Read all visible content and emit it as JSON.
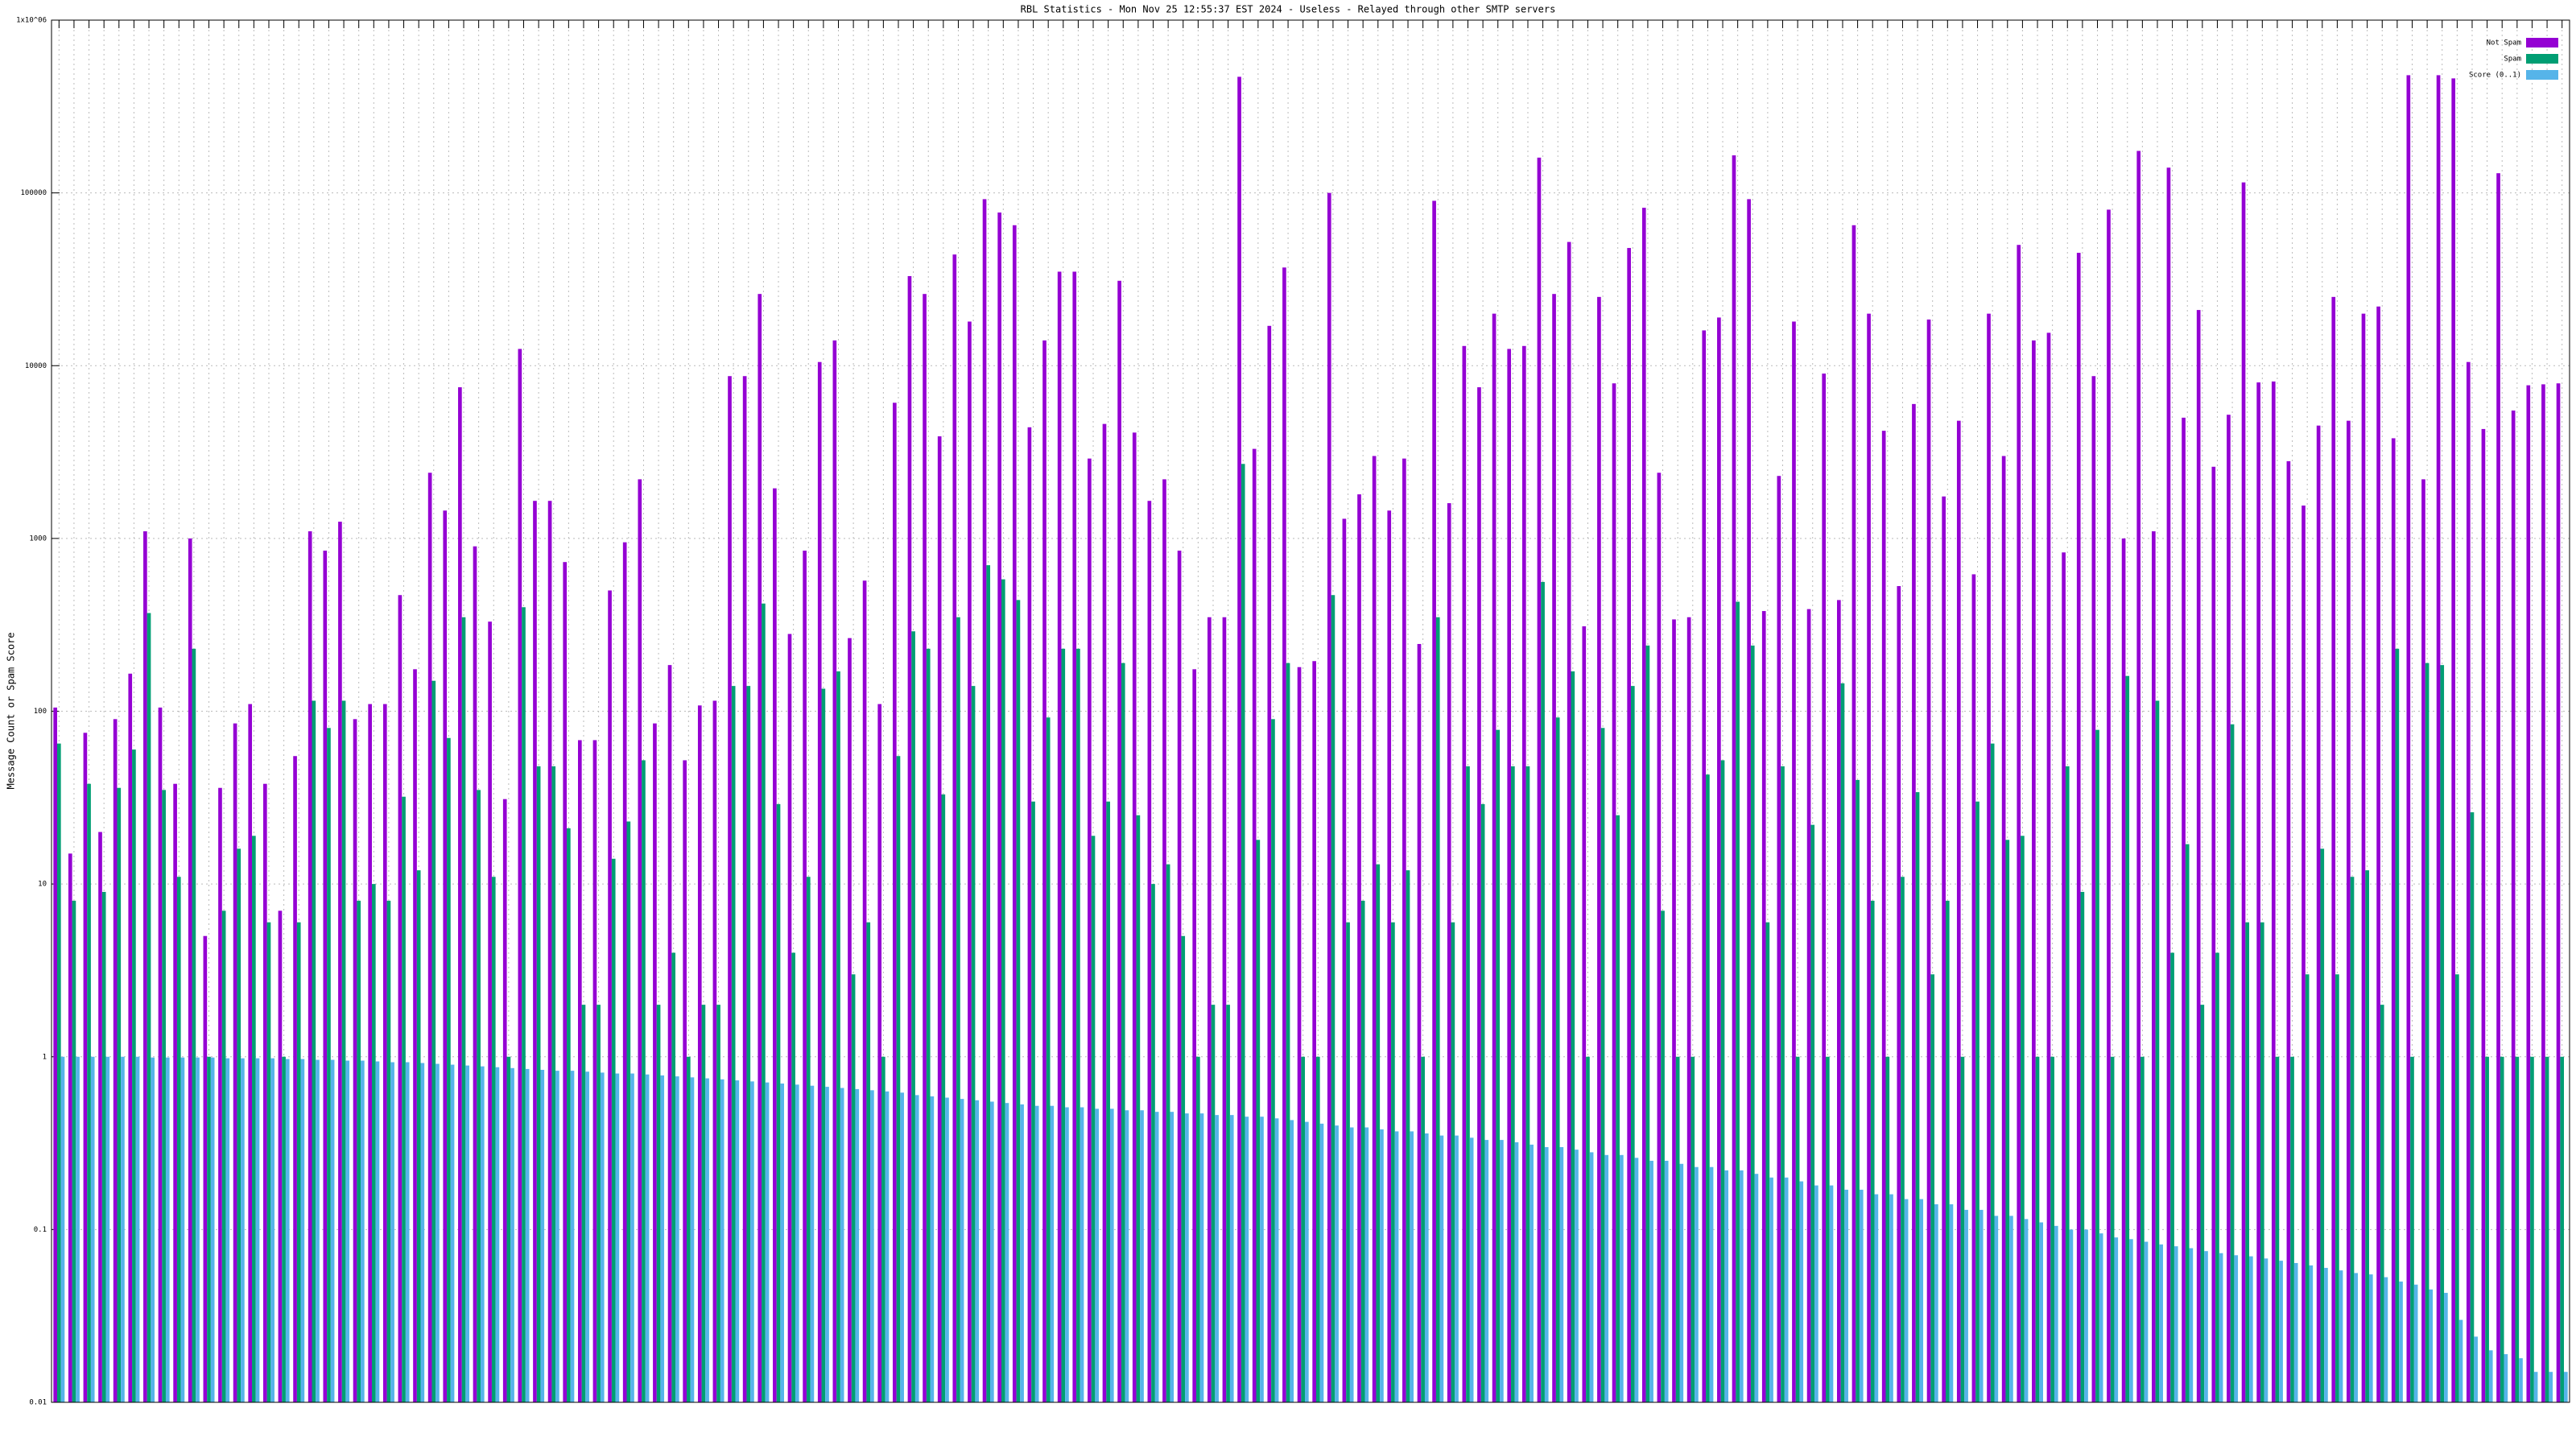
{
  "chart_data": {
    "type": "bar",
    "title": "RBL Statistics - Mon Nov 25 12:55:37 EST 2024 - Useless - Relayed through other SMTP servers",
    "y_label": "Message Count or Spam Score",
    "log_y": true,
    "grid": true,
    "legend": "top-right",
    "ylim": [
      0.01,
      1000000
    ],
    "yticks": [
      0.01,
      0.1,
      1,
      10,
      100,
      1000,
      10000,
      100000,
      {
        "value": 1000000,
        "label": "1x10^06"
      }
    ],
    "categories": [
      null,
      null,
      null,
      null,
      null,
      null,
      null,
      null,
      null,
      null,
      null,
      null,
      null,
      null,
      null,
      null,
      null,
      null,
      null,
      null,
      null,
      null,
      null,
      null,
      null,
      null,
      null,
      null,
      null,
      null,
      null,
      null,
      null,
      null,
      null,
      null,
      null,
      null,
      null,
      null,
      null,
      null,
      null,
      null,
      null,
      null,
      null,
      null,
      null,
      null,
      null,
      null,
      null,
      null,
      null,
      null,
      null,
      null,
      null,
      null,
      null,
      null,
      null,
      null,
      null,
      null,
      null,
      null,
      null,
      null,
      null,
      null,
      null,
      null,
      null,
      null,
      null,
      null,
      null,
      null,
      null,
      null,
      null,
      null,
      null,
      null,
      null,
      null,
      null,
      null,
      null,
      null,
      null,
      null,
      null,
      null,
      null,
      null,
      null,
      null,
      null,
      null,
      null,
      null,
      null,
      null,
      null,
      null,
      null,
      null,
      null,
      null,
      null,
      null,
      null,
      null,
      null,
      null,
      null,
      null,
      null,
      null,
      null,
      null,
      null,
      null,
      null,
      null,
      null,
      null,
      null,
      null,
      null,
      null,
      null,
      null,
      null,
      null,
      null,
      null,
      null,
      null,
      null,
      null,
      null,
      null,
      null,
      null,
      null,
      null,
      null,
      null,
      null,
      null,
      null,
      null,
      null,
      null,
      null,
      null,
      null,
      null,
      null,
      null,
      null,
      null,
      null,
      null
    ],
    "series": [
      {
        "name": "Not Spam",
        "color": "#9400d3",
        "values": [
          105,
          15,
          75,
          20,
          90,
          165,
          1100,
          105,
          38,
          1000,
          5,
          36,
          85,
          110,
          38,
          7,
          55,
          1100,
          850,
          1250,
          90,
          110,
          110,
          470,
          175,
          2400,
          1450,
          7500,
          900,
          330,
          31,
          12500,
          1650,
          1650,
          730,
          68,
          68,
          500,
          950,
          2200,
          85,
          185,
          52,
          108,
          115,
          8700,
          8700,
          26000,
          1950,
          280,
          850,
          10500,
          14000,
          265,
          570,
          110,
          6100,
          33000,
          26000,
          3900,
          44000,
          18000,
          92000,
          77000,
          65000,
          4400,
          14000,
          35000,
          35000,
          2900,
          4600,
          31000,
          4100,
          1650,
          2200,
          850,
          175,
          350,
          350,
          470000,
          3300,
          17000,
          37000,
          180,
          195,
          100000,
          1300,
          1800,
          3000,
          1450,
          2900,
          245,
          90000,
          1600,
          13000,
          7500,
          20000,
          12500,
          13000,
          160000,
          26000,
          52000,
          310,
          25000,
          7900,
          48000,
          82000,
          2400,
          340,
          350,
          16000,
          19000,
          165000,
          92000,
          380,
          2300,
          18000,
          390,
          9000,
          440,
          65000,
          20000,
          4200,
          530,
          6000,
          18500,
          1750,
          4800,
          620,
          20000,
          3000,
          50000,
          14000,
          15500,
          830,
          45000,
          8700,
          80000,
          1000,
          175000,
          1100,
          140000,
          5000,
          21000,
          2600,
          5200,
          115000,
          8000,
          8100,
          2800,
          1550,
          4500,
          25000,
          4800,
          20000,
          22000,
          3800,
          480000,
          2200,
          480000,
          460000,
          10500,
          4300,
          130000,
          5500,
          7700,
          7800,
          7900
        ]
      },
      {
        "name": "Spam",
        "color": "#009e73",
        "values": [
          65,
          8,
          38,
          9,
          36,
          60,
          370,
          35,
          11,
          230,
          1,
          7,
          16,
          19,
          6,
          1,
          6,
          115,
          80,
          115,
          8,
          10,
          8,
          32,
          12,
          150,
          70,
          350,
          35,
          11,
          1,
          400,
          48,
          48,
          21,
          2,
          2,
          14,
          23,
          52,
          2,
          4,
          1,
          2,
          2,
          140,
          140,
          420,
          29,
          4,
          11,
          135,
          170,
          3,
          6,
          1,
          55,
          290,
          230,
          33,
          350,
          140,
          700,
          580,
          440,
          30,
          92,
          230,
          230,
          19,
          30,
          190,
          25,
          10,
          13,
          5,
          1,
          2,
          2,
          2700,
          18,
          90,
          190,
          1,
          1,
          470,
          6,
          8,
          13,
          6,
          12,
          1,
          350,
          6,
          48,
          29,
          78,
          48,
          48,
          560,
          92,
          170,
          1,
          80,
          25,
          140,
          240,
          7,
          1,
          1,
          43,
          52,
          430,
          240,
          6,
          48,
          1,
          22,
          1,
          145,
          40,
          8,
          1,
          11,
          34,
          3,
          8,
          1,
          30,
          65,
          18,
          19,
          1,
          1,
          48,
          9,
          78,
          1,
          160,
          1,
          115,
          4,
          17,
          2,
          4,
          84,
          6,
          6,
          1,
          1,
          3,
          16,
          3,
          11,
          12,
          2,
          230,
          1,
          190,
          185,
          3,
          26,
          1,
          1,
          1,
          1,
          1,
          1
        ]
      },
      {
        "name": "Score (0..1)",
        "color": "#56b4e9",
        "values": [
          1,
          1,
          1,
          1,
          1,
          1,
          0.99,
          0.99,
          0.99,
          0.99,
          0.99,
          0.98,
          0.98,
          0.98,
          0.98,
          0.97,
          0.97,
          0.96,
          0.96,
          0.95,
          0.95,
          0.94,
          0.93,
          0.93,
          0.92,
          0.91,
          0.9,
          0.89,
          0.88,
          0.87,
          0.86,
          0.85,
          0.84,
          0.83,
          0.83,
          0.82,
          0.81,
          0.8,
          0.8,
          0.79,
          0.78,
          0.77,
          0.76,
          0.75,
          0.74,
          0.73,
          0.72,
          0.71,
          0.7,
          0.69,
          0.68,
          0.67,
          0.66,
          0.65,
          0.64,
          0.63,
          0.62,
          0.6,
          0.59,
          0.58,
          0.57,
          0.56,
          0.55,
          0.54,
          0.53,
          0.52,
          0.52,
          0.51,
          0.51,
          0.5,
          0.5,
          0.49,
          0.49,
          0.48,
          0.48,
          0.47,
          0.47,
          0.46,
          0.46,
          0.45,
          0.45,
          0.44,
          0.43,
          0.42,
          0.41,
          0.4,
          0.39,
          0.39,
          0.38,
          0.37,
          0.37,
          0.36,
          0.35,
          0.35,
          0.34,
          0.33,
          0.33,
          0.32,
          0.31,
          0.3,
          0.3,
          0.29,
          0.28,
          0.27,
          0.27,
          0.26,
          0.25,
          0.25,
          0.24,
          0.23,
          0.23,
          0.22,
          0.22,
          0.21,
          0.2,
          0.2,
          0.19,
          0.18,
          0.18,
          0.17,
          0.17,
          0.16,
          0.16,
          0.15,
          0.15,
          0.14,
          0.14,
          0.13,
          0.13,
          0.12,
          0.12,
          0.115,
          0.11,
          0.105,
          0.1,
          0.1,
          0.095,
          0.09,
          0.088,
          0.085,
          0.082,
          0.08,
          0.078,
          0.075,
          0.073,
          0.071,
          0.07,
          0.068,
          0.066,
          0.064,
          0.062,
          0.06,
          0.058,
          0.056,
          0.055,
          0.053,
          0.05,
          0.048,
          0.045,
          0.043,
          0.03,
          0.024,
          0.02,
          0.019,
          0.018,
          0.015,
          0.015,
          0.015
        ]
      }
    ]
  }
}
